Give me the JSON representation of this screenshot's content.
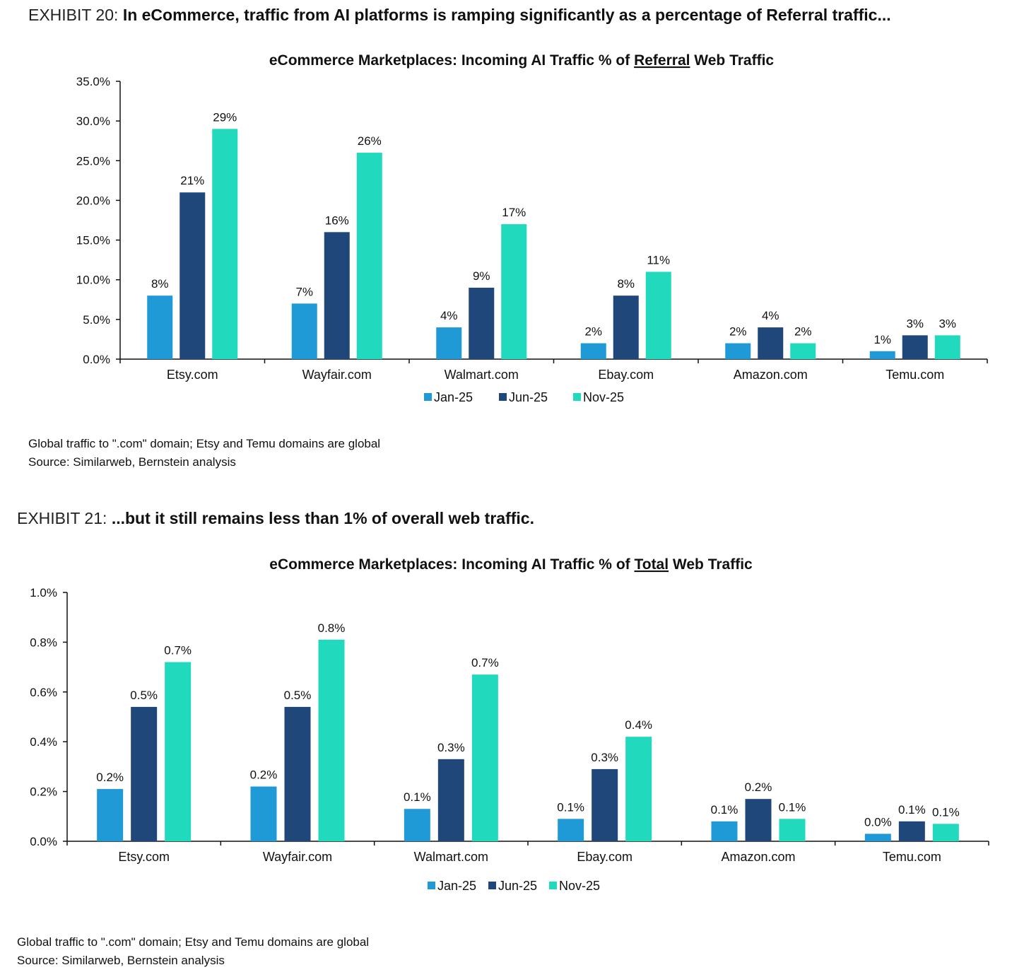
{
  "exhibit20": {
    "label": "EXHIBIT 20:",
    "text": "In eCommerce, traffic from AI platforms is ramping significantly as a percentage of Referral traffic...",
    "footnote": "Global traffic to \".com\" domain; Etsy and Temu domains are global",
    "source": "Source: Similarweb, Bernstein analysis"
  },
  "exhibit21": {
    "label": "EXHIBIT 21:",
    "text": "...but it still remains less than 1% of overall web traffic.",
    "footnote": "Global traffic to \".com\" domain; Etsy and Temu domains are global",
    "source": "Source: Similarweb, Bernstein analysis"
  },
  "colors": {
    "Jan-25": "#1f9ad6",
    "Jun-25": "#1f477a",
    "Nov-25": "#21d9bc",
    "axis": "#111111"
  },
  "chart_data": [
    {
      "type": "bar",
      "title_pre": "eCommerce Marketplaces: Incoming AI Traffic % of ",
      "title_underlined": "Referral",
      "title_post": " Web Traffic",
      "categories": [
        "Etsy.com",
        "Wayfair.com",
        "Walmart.com",
        "Ebay.com",
        "Amazon.com",
        "Temu.com"
      ],
      "series": [
        {
          "name": "Jan-25",
          "values": [
            8,
            7,
            4,
            2,
            2,
            1
          ],
          "labels": [
            "8%",
            "7%",
            "4%",
            "2%",
            "2%",
            "1%"
          ]
        },
        {
          "name": "Jun-25",
          "values": [
            21,
            16,
            9,
            8,
            4,
            3
          ],
          "labels": [
            "21%",
            "16%",
            "9%",
            "8%",
            "4%",
            "3%"
          ]
        },
        {
          "name": "Nov-25",
          "values": [
            29,
            26,
            17,
            11,
            2,
            3
          ],
          "labels": [
            "29%",
            "26%",
            "17%",
            "11%",
            "2%",
            "3%"
          ]
        }
      ],
      "ylim": [
        0,
        35
      ],
      "yticks": [
        0,
        5,
        10,
        15,
        20,
        25,
        30,
        35
      ],
      "ytick_labels": [
        "0.0%",
        "5.0%",
        "10.0%",
        "15.0%",
        "20.0%",
        "25.0%",
        "30.0%",
        "35.0%"
      ],
      "legend": "bottom-center",
      "grid": false
    },
    {
      "type": "bar",
      "title_pre": "eCommerce Marketplaces: Incoming AI Traffic % of ",
      "title_underlined": "Total",
      "title_post": " Web Traffic",
      "categories": [
        "Etsy.com",
        "Wayfair.com",
        "Walmart.com",
        "Ebay.com",
        "Amazon.com",
        "Temu.com"
      ],
      "series": [
        {
          "name": "Jan-25",
          "values": [
            0.21,
            0.22,
            0.13,
            0.09,
            0.08,
            0.03
          ],
          "labels": [
            "0.2%",
            "0.2%",
            "0.1%",
            "0.1%",
            "0.1%",
            "0.0%"
          ]
        },
        {
          "name": "Jun-25",
          "values": [
            0.54,
            0.54,
            0.33,
            0.29,
            0.17,
            0.08
          ],
          "labels": [
            "0.5%",
            "0.5%",
            "0.3%",
            "0.3%",
            "0.2%",
            "0.1%"
          ]
        },
        {
          "name": "Nov-25",
          "values": [
            0.72,
            0.81,
            0.67,
            0.42,
            0.09,
            0.07
          ],
          "labels": [
            "0.7%",
            "0.8%",
            "0.7%",
            "0.4%",
            "0.1%",
            "0.1%"
          ]
        }
      ],
      "ylim": [
        0,
        1.0
      ],
      "yticks": [
        0,
        0.2,
        0.4,
        0.6,
        0.8,
        1.0
      ],
      "ytick_labels": [
        "0.0%",
        "0.2%",
        "0.4%",
        "0.6%",
        "0.8%",
        "1.0%"
      ],
      "legend": "bottom-center",
      "grid": false
    }
  ]
}
